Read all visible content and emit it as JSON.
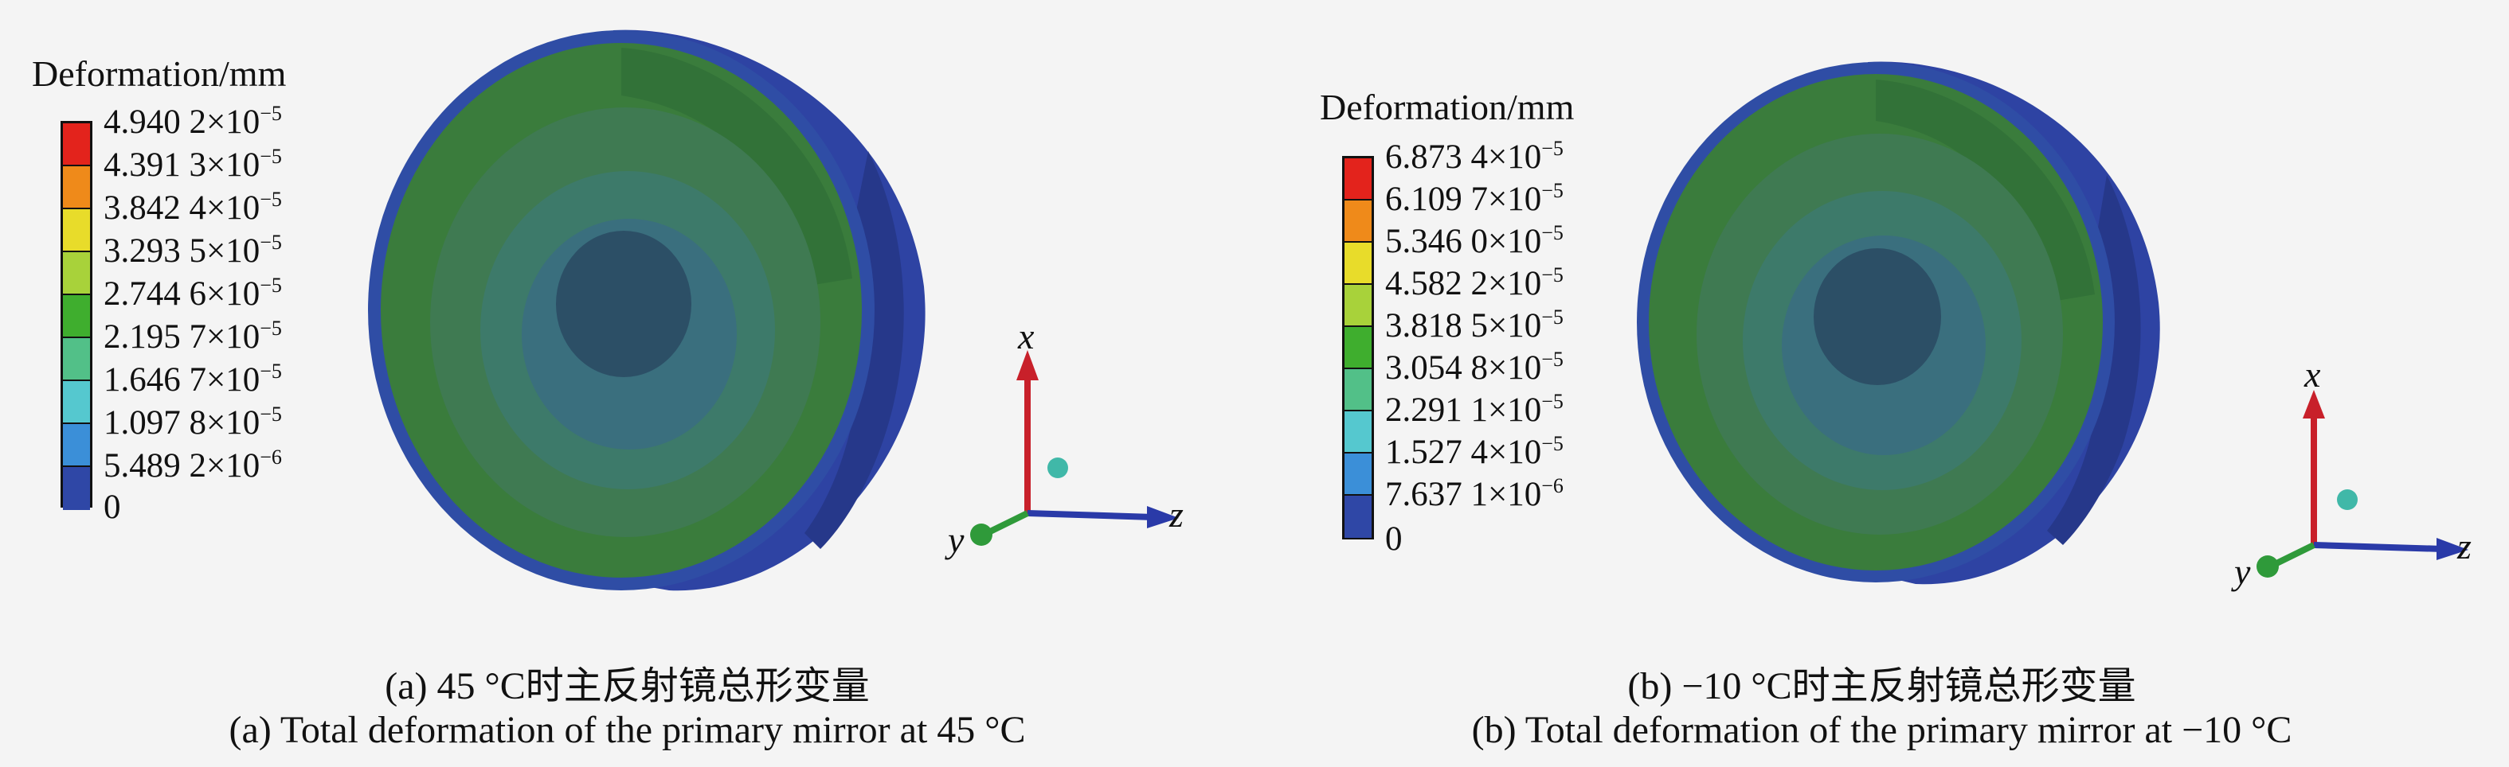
{
  "panels": [
    {
      "legend_title": "Deformation/mm",
      "legend": [
        {
          "mantissa": "4.940 2×10",
          "exp": "−5",
          "color": "#e3231c"
        },
        {
          "mantissa": "4.391 3×10",
          "exp": "−5",
          "color": "#ef8a1a"
        },
        {
          "mantissa": "3.842 4×10",
          "exp": "−5",
          "color": "#e8dc2a"
        },
        {
          "mantissa": "3.293 5×10",
          "exp": "−5",
          "color": "#a8d23a"
        },
        {
          "mantissa": "2.744 6×10",
          "exp": "−5",
          "color": "#3fae2e"
        },
        {
          "mantissa": "2.195 7×10",
          "exp": "−5",
          "color": "#52c088"
        },
        {
          "mantissa": "1.646 7×10",
          "exp": "−5",
          "color": "#55c8cf"
        },
        {
          "mantissa": "1.097 8×10",
          "exp": "−5",
          "color": "#3b8fd8"
        },
        {
          "mantissa": "5.489 2×10",
          "exp": "−6",
          "color": "#2f47a6"
        },
        {
          "mantissa": "0",
          "exp": "",
          "color": ""
        }
      ],
      "caption_cn": "(a) 45 °C时主反射镜总形变量",
      "caption_en": "(a) Total deformation of the primary mirror at 45 °C"
    },
    {
      "legend_title": "Deformation/mm",
      "legend": [
        {
          "mantissa": "6.873 4×10",
          "exp": "−5",
          "color": "#e3231c"
        },
        {
          "mantissa": "6.109 7×10",
          "exp": "−5",
          "color": "#ef8a1a"
        },
        {
          "mantissa": "5.346 0×10",
          "exp": "−5",
          "color": "#e8dc2a"
        },
        {
          "mantissa": "4.582 2×10",
          "exp": "−5",
          "color": "#a8d23a"
        },
        {
          "mantissa": "3.818 5×10",
          "exp": "−5",
          "color": "#3fae2e"
        },
        {
          "mantissa": "3.054 8×10",
          "exp": "−5",
          "color": "#52c088"
        },
        {
          "mantissa": "2.291 1×10",
          "exp": "−5",
          "color": "#55c8cf"
        },
        {
          "mantissa": "1.527 4×10",
          "exp": "−5",
          "color": "#3b8fd8"
        },
        {
          "mantissa": "7.637 1×10",
          "exp": "−6",
          "color": "#2f47a6"
        },
        {
          "mantissa": "0",
          "exp": "",
          "color": ""
        }
      ],
      "caption_cn": "(b) −10 °C时主反射镜总形变量",
      "caption_en": "(b) Total deformation of the primary mirror at −10 °C"
    }
  ],
  "axes_labels": {
    "x": "x",
    "y": "y",
    "z": "z"
  },
  "colors": {
    "mirror_rim": "#2e43a3",
    "mirror_outer": "#3a7f3a",
    "mirror_mid": "#3f7f6a",
    "mirror_inner": "#3b6a7f",
    "mirror_center": "#2c4f66",
    "axis_x": "#c8202a",
    "axis_z": "#2a3aa8",
    "axis_y": "#2f9a3a"
  }
}
